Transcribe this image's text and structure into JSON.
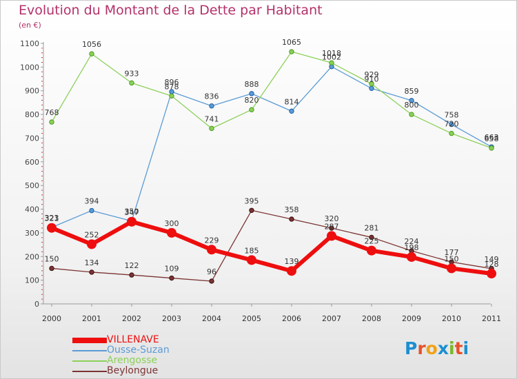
{
  "title": "Evolution du Montant de la Dette par Habitant",
  "unit_label": "(en €)",
  "logo_text": "Proxiti",
  "logo_colors": [
    "#1b8fd1",
    "#e8512a",
    "#f0a319",
    "#1b8fd1",
    "#7ab829",
    "#e8512a",
    "#1b8fd1"
  ],
  "chart_data": {
    "type": "line",
    "x": [
      "2000",
      "2001",
      "2002",
      "2003",
      "2004",
      "2005",
      "2006",
      "2007",
      "2008",
      "2009",
      "2010",
      "2011"
    ],
    "ylim": [
      0,
      1100
    ],
    "yticks": [
      0,
      100,
      200,
      300,
      400,
      500,
      600,
      700,
      800,
      900,
      1000,
      1100
    ],
    "grid": false,
    "legend_position": "bottom-left",
    "series": [
      {
        "name": "VILLENAVE",
        "color": "#ee0e0e",
        "values": [
          321,
          252,
          347,
          300,
          229,
          185,
          139,
          287,
          225,
          198,
          150,
          128
        ]
      },
      {
        "name": "Ousse-Suzan",
        "color": "#5b9bd5",
        "values": [
          323,
          394,
          350,
          896,
          836,
          888,
          814,
          1002,
          910,
          859,
          758,
          663
        ]
      },
      {
        "name": "Arengosse",
        "color": "#8cd05a",
        "values": [
          768,
          1056,
          933,
          878,
          741,
          820,
          1065,
          1018,
          929,
          800,
          720,
          658
        ]
      },
      {
        "name": "Beylongue",
        "color": "#7b3333",
        "values": [
          150,
          134,
          122,
          109,
          96,
          395,
          358,
          320,
          281,
          224,
          177,
          149
        ]
      }
    ]
  }
}
